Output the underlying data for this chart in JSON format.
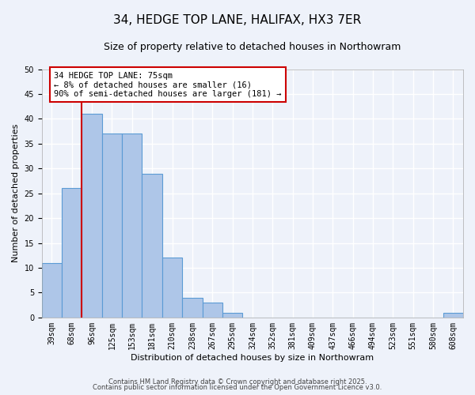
{
  "title": "34, HEDGE TOP LANE, HALIFAX, HX3 7ER",
  "subtitle": "Size of property relative to detached houses in Northowram",
  "xlabel": "Distribution of detached houses by size in Northowram",
  "ylabel": "Number of detached properties",
  "bin_labels": [
    "39sqm",
    "68sqm",
    "96sqm",
    "125sqm",
    "153sqm",
    "181sqm",
    "210sqm",
    "238sqm",
    "267sqm",
    "295sqm",
    "324sqm",
    "352sqm",
    "381sqm",
    "409sqm",
    "437sqm",
    "466sqm",
    "494sqm",
    "523sqm",
    "551sqm",
    "580sqm",
    "608sqm"
  ],
  "bar_heights": [
    11,
    26,
    41,
    37,
    37,
    29,
    12,
    4,
    3,
    1,
    0,
    0,
    0,
    0,
    0,
    0,
    0,
    0,
    0,
    0,
    1
  ],
  "bar_color": "#aec6e8",
  "bar_edge_color": "#5b9bd5",
  "ylim": [
    0,
    50
  ],
  "yticks": [
    0,
    5,
    10,
    15,
    20,
    25,
    30,
    35,
    40,
    45,
    50
  ],
  "property_line_x": 1.5,
  "property_line_color": "#cc0000",
  "annotation_text": "34 HEDGE TOP LANE: 75sqm\n← 8% of detached houses are smaller (16)\n90% of semi-detached houses are larger (181) →",
  "annotation_box_color": "#ffffff",
  "annotation_box_edge_color": "#cc0000",
  "footer_line1": "Contains HM Land Registry data © Crown copyright and database right 2025.",
  "footer_line2": "Contains public sector information licensed under the Open Government Licence v3.0.",
  "background_color": "#eef2fa",
  "grid_color": "#ffffff",
  "title_fontsize": 11,
  "subtitle_fontsize": 9,
  "axis_label_fontsize": 8,
  "tick_label_fontsize": 7,
  "annotation_fontsize": 7.5,
  "footer_fontsize": 6
}
